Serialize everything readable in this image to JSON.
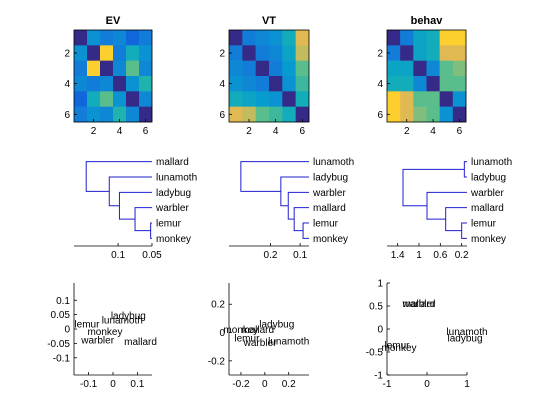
{
  "chart_data": [
    {
      "type": "heatmap",
      "title": "EV",
      "xticks": [
        2,
        4,
        6
      ],
      "yticks": [
        2,
        4,
        6
      ],
      "colormap": "parula",
      "matrix": [
        [
          0.0,
          0.4,
          0.3,
          0.35,
          0.2,
          0.3
        ],
        [
          0.4,
          0.0,
          0.95,
          0.3,
          0.55,
          0.4
        ],
        [
          0.3,
          0.95,
          0.0,
          0.35,
          0.7,
          0.35
        ],
        [
          0.35,
          0.3,
          0.35,
          0.0,
          0.4,
          0.6
        ],
        [
          0.2,
          0.55,
          0.7,
          0.4,
          0.0,
          0.35
        ],
        [
          0.3,
          0.4,
          0.35,
          0.6,
          0.35,
          0.0
        ]
      ]
    },
    {
      "type": "heatmap",
      "title": "VT",
      "xticks": [
        2,
        4,
        6
      ],
      "yticks": [
        2,
        4,
        6
      ],
      "colormap": "parula",
      "matrix": [
        [
          0.0,
          0.3,
          0.35,
          0.4,
          0.55,
          0.9
        ],
        [
          0.3,
          0.0,
          0.3,
          0.35,
          0.5,
          0.85
        ],
        [
          0.35,
          0.3,
          0.0,
          0.3,
          0.45,
          0.7
        ],
        [
          0.4,
          0.35,
          0.3,
          0.0,
          0.4,
          0.65
        ],
        [
          0.55,
          0.5,
          0.45,
          0.4,
          0.0,
          0.55
        ],
        [
          0.9,
          0.85,
          0.7,
          0.65,
          0.55,
          0.0
        ]
      ]
    },
    {
      "type": "heatmap",
      "title": "behav",
      "xticks": [
        2,
        4,
        6
      ],
      "yticks": [
        2,
        4,
        6
      ],
      "colormap": "parula",
      "matrix": [
        [
          0.0,
          0.3,
          0.5,
          0.55,
          0.95,
          0.95
        ],
        [
          0.3,
          0.0,
          0.5,
          0.55,
          0.9,
          0.9
        ],
        [
          0.5,
          0.5,
          0.0,
          0.35,
          0.7,
          0.75
        ],
        [
          0.55,
          0.55,
          0.35,
          0.0,
          0.7,
          0.7
        ],
        [
          0.95,
          0.9,
          0.7,
          0.7,
          0.0,
          0.4
        ],
        [
          0.95,
          0.9,
          0.75,
          0.7,
          0.4,
          0.0
        ]
      ]
    },
    {
      "type": "dendrogram",
      "leaves": [
        "mallard",
        "lunamoth",
        "ladybug",
        "warbler",
        "lemur",
        "monkey"
      ],
      "xlim": [
        0.165,
        0.05
      ],
      "xticks": [
        0.1,
        0.05
      ],
      "xticklabels": [
        "0.1",
        "0.05"
      ],
      "links": [
        {
          "left": "lemur",
          "right": "monkey",
          "height": 0.052
        },
        {
          "left": "warbler",
          "right": 7,
          "height": 0.075
        },
        {
          "left": "ladybug",
          "right": 8,
          "height": 0.098
        },
        {
          "left": "lunamoth",
          "right": 9,
          "height": 0.113
        },
        {
          "left": "mallard",
          "right": 10,
          "height": 0.147
        }
      ]
    },
    {
      "type": "dendrogram",
      "leaves": [
        "lunamoth",
        "ladybug",
        "warbler",
        "mallard",
        "lemur",
        "monkey"
      ],
      "xlim": [
        0.34,
        0.07
      ],
      "xticks": [
        0.2,
        0.1
      ],
      "xticklabels": [
        "0.2",
        "0.1"
      ],
      "links": [
        {
          "left": "lemur",
          "right": "monkey",
          "height": 0.09
        },
        {
          "left": "mallard",
          "right": 7,
          "height": 0.12
        },
        {
          "left": "warbler",
          "right": 8,
          "height": 0.14
        },
        {
          "left": "ladybug",
          "right": 9,
          "height": 0.165
        },
        {
          "left": "lunamoth",
          "right": 10,
          "height": 0.3
        }
      ]
    },
    {
      "type": "dendrogram",
      "leaves": [
        "lunamoth",
        "ladybug",
        "warbler",
        "mallard",
        "lemur",
        "monkey"
      ],
      "xlim": [
        1.6,
        0.1
      ],
      "xticks": [
        1.4,
        1,
        0.6,
        0.2
      ],
      "xticklabels": [
        "1.4",
        "1",
        "0.6",
        "0.2"
      ],
      "links": [
        {
          "left": "lunamoth",
          "right": "ladybug",
          "height": 0.15
        },
        {
          "left": "lemur",
          "right": "monkey",
          "height": 0.2
        },
        {
          "left": "mallard",
          "right": 8,
          "height": 0.5
        },
        {
          "left": "warbler",
          "right": 9,
          "height": 0.85
        },
        {
          "left": 7,
          "right": 10,
          "height": 1.3
        }
      ]
    },
    {
      "type": "scatter",
      "marker": "text-labels",
      "xlim": [
        -0.16,
        0.16
      ],
      "ylim": [
        -0.16,
        0.16
      ],
      "xticks": [
        -0.1,
        0,
        0.1
      ],
      "xticklabels": [
        "-0.1",
        "0",
        "0.1"
      ],
      "yticks": [
        0.1,
        0.05,
        0,
        -0.05,
        -0.1
      ],
      "yticklabels": [
        "0.1",
        "0.05",
        "0",
        "-0.05",
        "-0.1"
      ],
      "points": [
        {
          "label": "ladybug",
          "x": 0.063,
          "y": 0.047
        },
        {
          "label": "lunamoth",
          "x": 0.038,
          "y": 0.032
        },
        {
          "label": "lemur",
          "x": -0.107,
          "y": 0.018
        },
        {
          "label": "monkey",
          "x": -0.033,
          "y": -0.008
        },
        {
          "label": "warbler",
          "x": -0.063,
          "y": -0.038
        },
        {
          "label": "mallard",
          "x": 0.113,
          "y": -0.043
        }
      ]
    },
    {
      "type": "scatter",
      "marker": "text-labels",
      "xlim": [
        -0.3,
        0.37
      ],
      "ylim": [
        -0.3,
        0.35
      ],
      "xticks": [
        -0.2,
        0,
        0.2
      ],
      "xticklabels": [
        "-0.2",
        "0",
        "0.2"
      ],
      "yticks": [
        0.2,
        0,
        -0.2
      ],
      "yticklabels": [
        "0.2",
        "0",
        "-0.2"
      ],
      "points": [
        {
          "label": "ladybug",
          "x": 0.1,
          "y": 0.06
        },
        {
          "label": "mallard",
          "x": -0.06,
          "y": 0.02
        },
        {
          "label": "monkey",
          "x": -0.2,
          "y": 0.02
        },
        {
          "label": "lemur",
          "x": -0.15,
          "y": -0.04
        },
        {
          "label": "warbler",
          "x": -0.04,
          "y": -0.07
        },
        {
          "label": "lunamoth",
          "x": 0.2,
          "y": -0.06
        }
      ]
    },
    {
      "type": "scatter",
      "marker": "text-labels",
      "xlim": [
        -1,
        1
      ],
      "ylim": [
        -1,
        1
      ],
      "xticks": [
        -1,
        0,
        1
      ],
      "xticklabels": [
        "-1",
        "0",
        "1"
      ],
      "yticks": [
        1,
        0.5,
        0,
        -0.5,
        -1
      ],
      "yticklabels": [
        "1",
        "0.5",
        "0",
        "-0.5",
        "-1"
      ],
      "points": [
        {
          "label": "mallard",
          "x": -0.2,
          "y": 0.55
        },
        {
          "label": "warbler",
          "x": -0.2,
          "y": 0.55
        },
        {
          "label": "lunamoth",
          "x": 1.0,
          "y": -0.05
        },
        {
          "label": "ladybug",
          "x": 0.95,
          "y": -0.2
        },
        {
          "label": "lemur",
          "x": -0.75,
          "y": -0.35
        },
        {
          "label": "monkey",
          "x": -0.7,
          "y": -0.4
        }
      ]
    }
  ]
}
